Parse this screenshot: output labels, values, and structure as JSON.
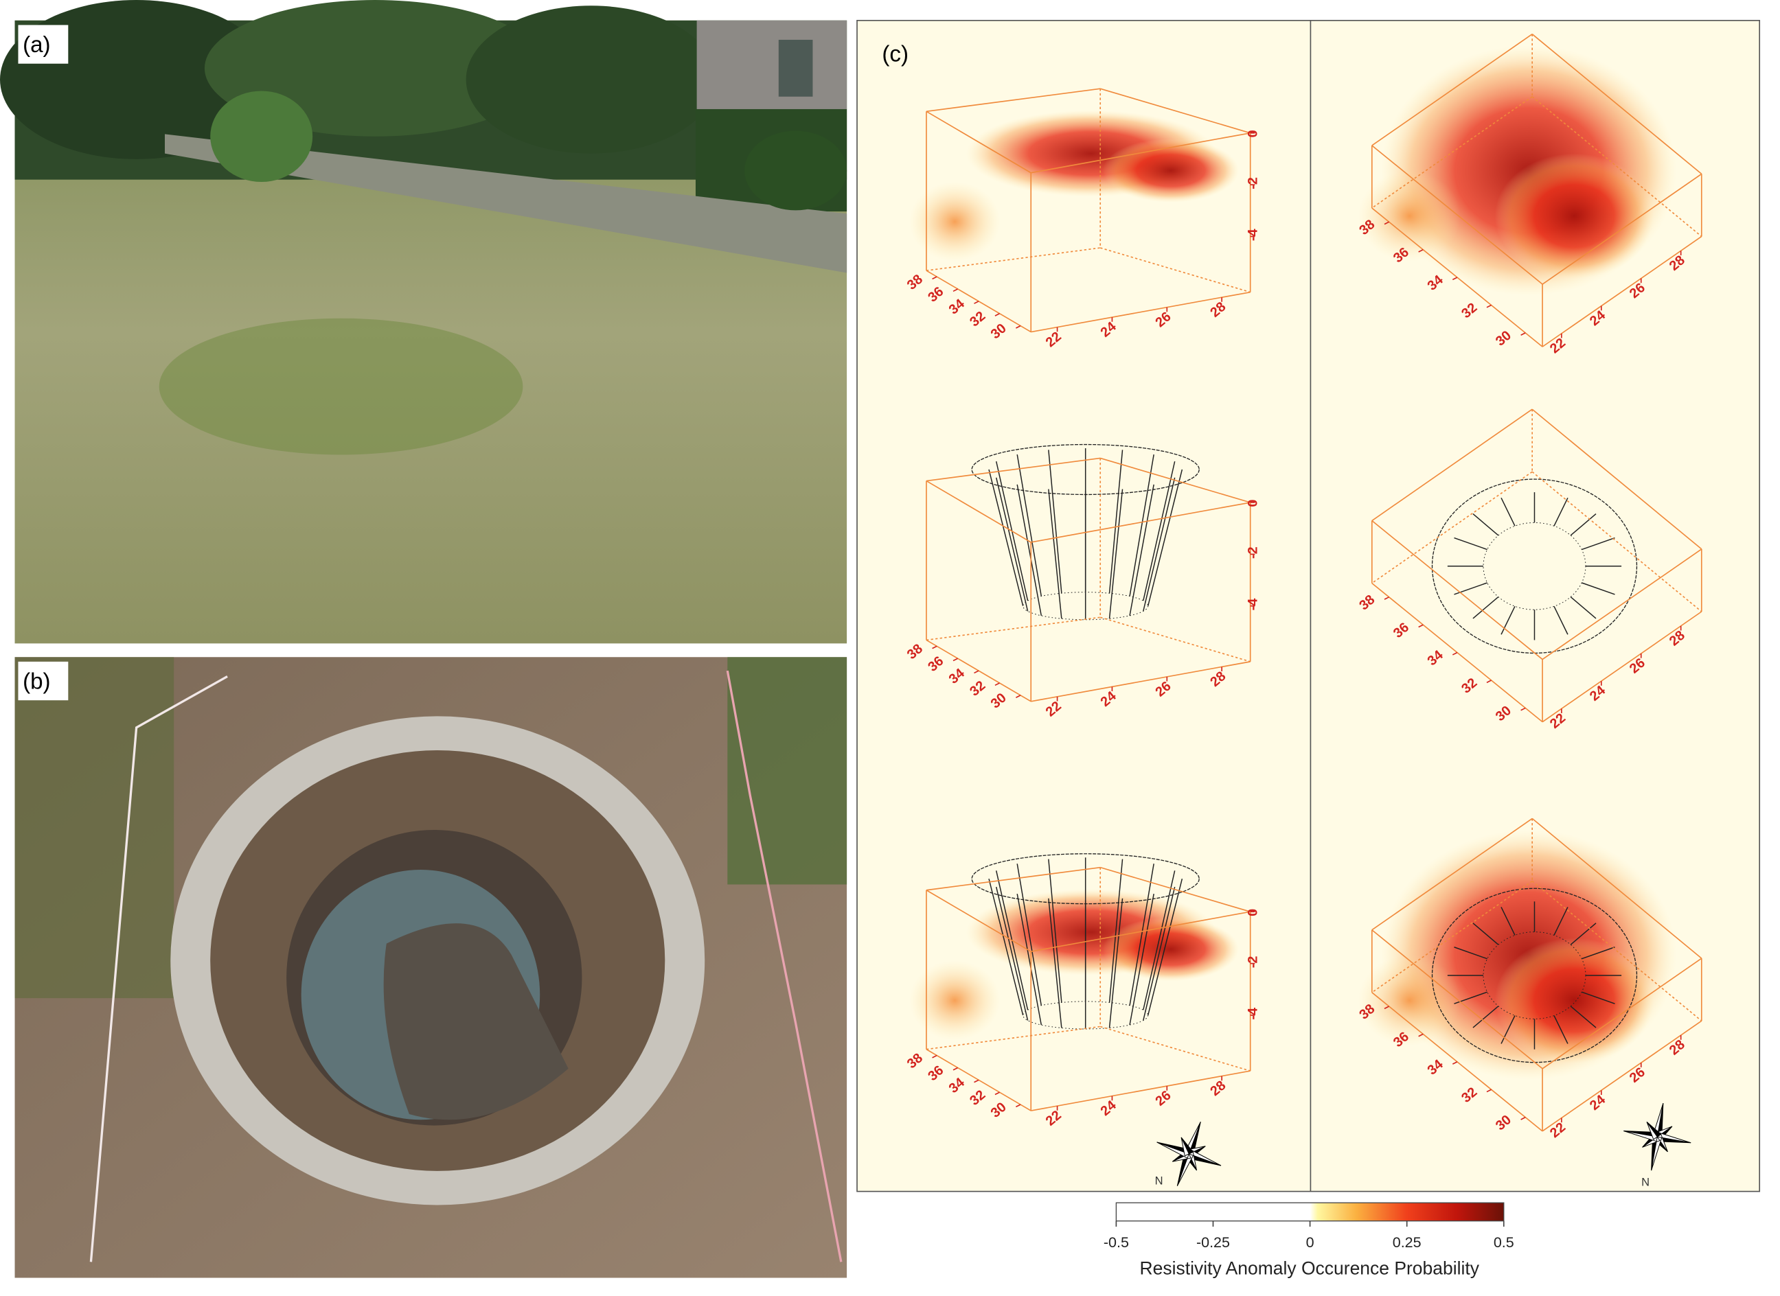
{
  "panels": {
    "a": {
      "label": "(a)"
    },
    "b": {
      "label": "(b)"
    },
    "c": {
      "label": "(c)"
    }
  },
  "axes": {
    "depth_ticks": [
      0,
      -2,
      -4
    ],
    "x_ticks": [
      22,
      24,
      26,
      28
    ],
    "y_ticks": [
      30,
      32,
      34,
      36,
      38
    ]
  },
  "compass_label": "N",
  "colorbar": {
    "range": [
      -0.5,
      0.5
    ],
    "ticks": [
      -0.5,
      -0.25,
      0,
      0.25,
      0.5
    ],
    "label": "Resistivity Anomaly Occurence Probability"
  }
}
